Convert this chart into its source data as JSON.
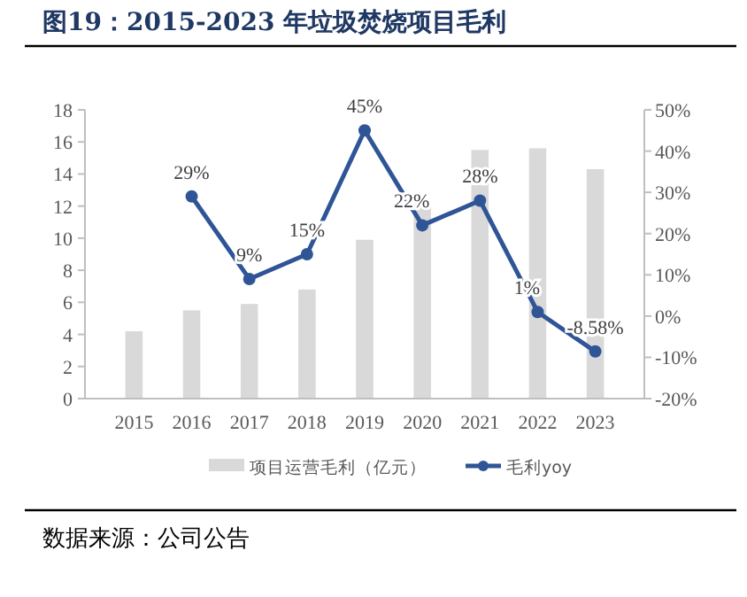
{
  "chart_data": {
    "type": "bar",
    "title": "图19：2015-2023 年垃圾焚烧项目毛利",
    "categories": [
      "2015",
      "2016",
      "2017",
      "2018",
      "2019",
      "2020",
      "2021",
      "2022",
      "2023"
    ],
    "series": [
      {
        "name": "项目运营毛利（亿元）",
        "color": "#d9d9d9",
        "values": [
          4.2,
          5.5,
          5.9,
          6.8,
          9.9,
          12.2,
          15.5,
          15.6,
          14.3
        ]
      },
      {
        "name": "毛利yoy",
        "type": "line",
        "axis": "y2",
        "color": "#2f5597",
        "marker": "circle",
        "values": [
          null,
          29,
          9,
          15,
          45,
          22,
          28,
          1,
          -8.58
        ],
        "value_labels": [
          null,
          "29%",
          "9%",
          "15%",
          "45%",
          "22%",
          "28%",
          "1%",
          "-8.58%"
        ]
      }
    ],
    "ylim": [
      0,
      18
    ],
    "yticks": [
      0,
      2,
      4,
      6,
      8,
      10,
      12,
      14,
      16,
      18
    ],
    "y2lim": [
      -20,
      50
    ],
    "y2ticks": [
      {
        "value": -20,
        "label": "-20%"
      },
      {
        "value": -10,
        "label": "-10%"
      },
      {
        "value": 0,
        "label": "0%"
      },
      {
        "value": 10,
        "label": "10%"
      },
      {
        "value": 20,
        "label": "20%"
      },
      {
        "value": 30,
        "label": "30%"
      },
      {
        "value": 40,
        "label": "40%"
      },
      {
        "value": 50,
        "label": "50%"
      }
    ],
    "legend": "bottom",
    "grid": false,
    "annotations": [
      "数据来源：公司公告"
    ]
  }
}
